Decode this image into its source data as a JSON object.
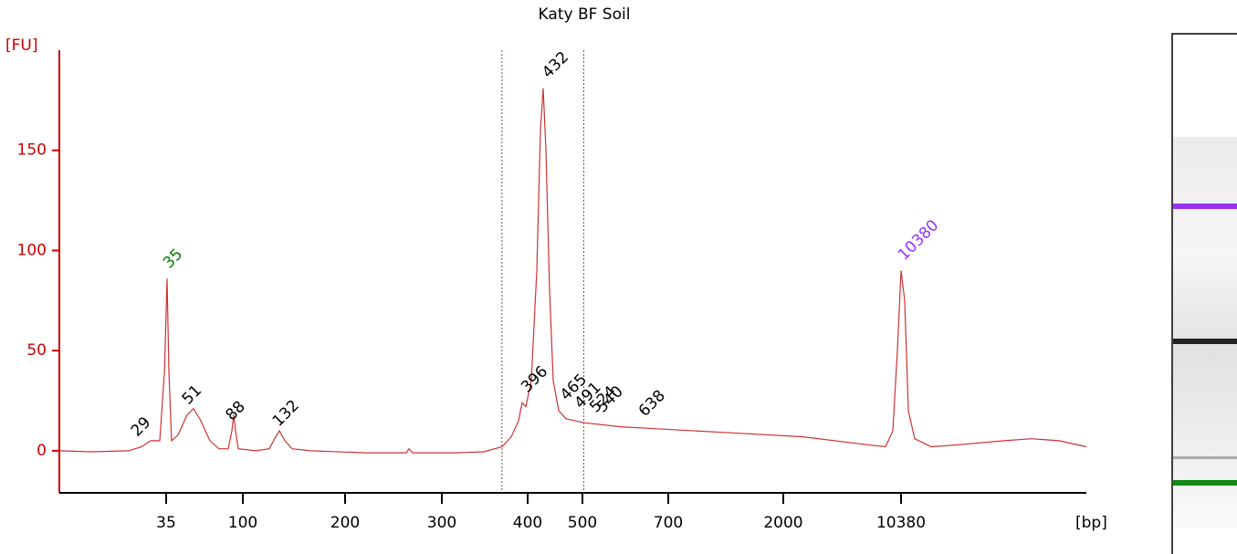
{
  "chart_data": {
    "type": "line",
    "title": "Katy BF Soil",
    "y_label": "[FU]",
    "x_label": "[bp]",
    "axis_color": "#cc0000",
    "color": "#cc3333",
    "xlim": [
      15,
      17000
    ],
    "xticks": [
      35,
      100,
      200,
      300,
      400,
      500,
      700,
      2000,
      10380
    ],
    "ylim": [
      -21,
      200
    ],
    "yticks": [
      0,
      50,
      100,
      150
    ],
    "region": [
      370,
      503
    ],
    "x": [
      15,
      21,
      28,
      30.4,
      32.1,
      33.8,
      34.7,
      35.8,
      37.3,
      39.6,
      45.1,
      52.8,
      58.2,
      64.4,
      72.1,
      79.9,
      87.6,
      90.7,
      92.3,
      93.8,
      96.1,
      112.5,
      125.9,
      132.1,
      135.7,
      141.1,
      148.2,
      166.1,
      220.8,
      263.2,
      266,
      269.8,
      317,
      349,
      370.2,
      380.9,
      389.4,
      393.6,
      397.9,
      406.7,
      416.7,
      423.3,
      428.3,
      433.3,
      440,
      446.7,
      456.7,
      470,
      504.3,
      589.4,
      674.5,
      1401.6,
      3429,
      7977,
      9276,
      9795,
      10120,
      10380,
      10510,
      10641,
      10869,
      11456,
      12434,
      14065,
      15043,
      16022,
      17000
    ],
    "values": [
      0,
      -0.5,
      0,
      2,
      5,
      5,
      40,
      86,
      40,
      5,
      8,
      18,
      21,
      15,
      5,
      1,
      1,
      10,
      18,
      10,
      1,
      0,
      1,
      7,
      10,
      5,
      1,
      0,
      -1,
      -1,
      1,
      -1,
      -1,
      -0.5,
      2,
      7,
      15,
      24,
      22,
      35,
      90,
      160,
      181,
      150,
      80,
      35,
      20,
      16,
      14,
      12,
      11,
      9,
      7,
      3,
      2,
      10,
      50,
      90,
      75,
      20,
      6,
      2,
      3,
      5,
      6,
      5,
      2
    ],
    "peaks": {
      "values": [
        29,
        35,
        51,
        88,
        132,
        396,
        432,
        465,
        491,
        524,
        540,
        638,
        10380
      ],
      "colors": [
        "#000000",
        "#008000",
        "#000000",
        "#000000",
        "#000000",
        "#000000",
        "#000000",
        "#000000",
        "#000000",
        "#000000",
        "#000000",
        "#000000",
        "#9933ff"
      ]
    }
  }
}
